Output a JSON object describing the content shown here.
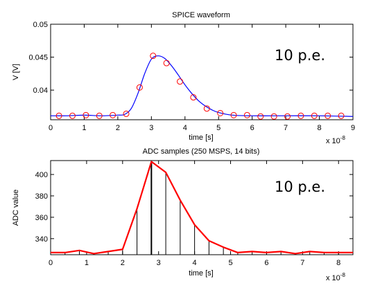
{
  "colors": {
    "spice_line": "#0000ff",
    "spice_marker": "#ff0000",
    "adc_line": "#ff0000",
    "stem": "#000000"
  },
  "chart_data": [
    {
      "type": "line",
      "title": "SPICE waveform",
      "xlabel": "time [s]",
      "ylabel": "V [V]",
      "x_exponent": "x 10",
      "x_exponent_power": "-8",
      "annotation": "10 p.e.",
      "xlim": [
        0,
        9
      ],
      "ylim": [
        0.0355,
        0.05
      ],
      "xticks": [
        0,
        1,
        2,
        3,
        4,
        5,
        6,
        7,
        8,
        9
      ],
      "xtick_labels": [
        "0",
        "1",
        "2",
        "3",
        "4",
        "5",
        "6",
        "7",
        "8",
        "9"
      ],
      "yticks": [
        0.04,
        0.045,
        0.05
      ],
      "ytick_labels": [
        "0.04",
        "0.045",
        "0.05"
      ],
      "grid": false,
      "series": [
        {
          "style": "line",
          "x": [
            0,
            0.5,
            1,
            1.5,
            2,
            2.2,
            2.4,
            2.6,
            2.8,
            3.0,
            3.2,
            3.4,
            3.6,
            3.8,
            4.0,
            4.2,
            4.4,
            4.6,
            4.8,
            5.0,
            5.4,
            6,
            7,
            8,
            9
          ],
          "y": [
            0.0361,
            0.0361,
            0.0362,
            0.0361,
            0.0362,
            0.0363,
            0.0372,
            0.0395,
            0.0425,
            0.0447,
            0.0452,
            0.0448,
            0.0437,
            0.0423,
            0.0408,
            0.0395,
            0.0384,
            0.0376,
            0.037,
            0.0366,
            0.0362,
            0.0361,
            0.0361,
            0.0361,
            0.036
          ]
        },
        {
          "style": "markers",
          "x": [
            0.25,
            0.65,
            1.05,
            1.45,
            1.85,
            2.25,
            2.65,
            3.05,
            3.45,
            3.85,
            4.25,
            4.65,
            5.05,
            5.45,
            5.85,
            6.25,
            6.65,
            7.05,
            7.45,
            7.85,
            8.25,
            8.65
          ],
          "y": [
            0.0361,
            0.0361,
            0.0362,
            0.0361,
            0.0362,
            0.0364,
            0.0404,
            0.0452,
            0.0441,
            0.0413,
            0.0389,
            0.0372,
            0.0365,
            0.0362,
            0.0362,
            0.036,
            0.036,
            0.036,
            0.0361,
            0.0361,
            0.0361,
            0.0361
          ]
        }
      ]
    },
    {
      "type": "line",
      "title": "ADC samples (250 MSPS, 14 bits)",
      "xlabel": "time [s]",
      "ylabel": "ADC value",
      "x_exponent": "x 10",
      "x_exponent_power": "-8",
      "annotation": "10 p.e.",
      "xlim": [
        0,
        8.4
      ],
      "ylim": [
        325,
        413
      ],
      "xticks": [
        0,
        1,
        2,
        3,
        4,
        5,
        6,
        7,
        8
      ],
      "xtick_labels": [
        "0",
        "1",
        "2",
        "3",
        "4",
        "5",
        "6",
        "7",
        "8"
      ],
      "yticks": [
        340,
        360,
        380,
        400
      ],
      "ytick_labels": [
        "340",
        "360",
        "380",
        "400"
      ],
      "grid": false,
      "series": [
        {
          "style": "line_with_stems",
          "x": [
            0,
            0.4,
            0.8,
            1.2,
            1.6,
            2.0,
            2.4,
            2.8,
            3.2,
            3.6,
            4.0,
            4.4,
            4.8,
            5.2,
            5.6,
            6.0,
            6.4,
            6.8,
            7.2,
            7.6,
            8.0,
            8.4
          ],
          "y": [
            327,
            327,
            329,
            326,
            328,
            330,
            368,
            412,
            402,
            376,
            353,
            338,
            332,
            327,
            328,
            327,
            328,
            326,
            328,
            327,
            327,
            327
          ]
        }
      ]
    }
  ]
}
